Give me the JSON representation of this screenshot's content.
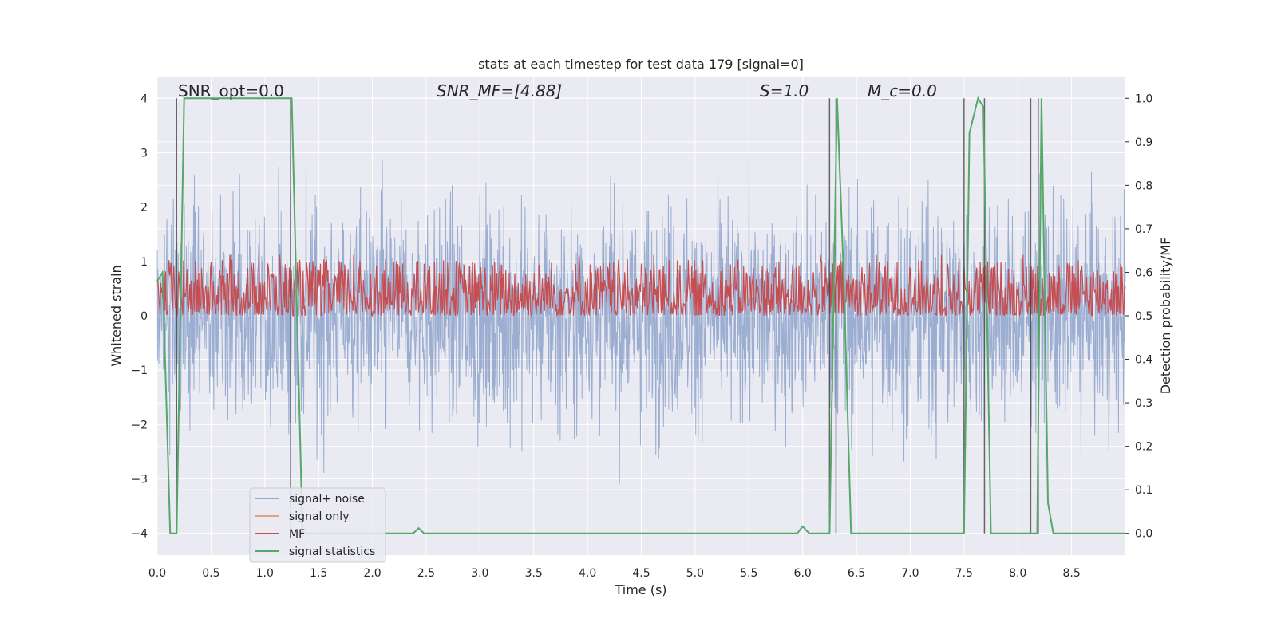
{
  "chart_data": {
    "type": "line",
    "title": "stats at each timestep for test data 179 [signal=0]",
    "xlabel": "Time (s)",
    "ylabel_left": "Whitened strain",
    "ylabel_right": "Detection probability/MF",
    "xlim": [
      0.0,
      9.0
    ],
    "ylim_left": [
      -4.4,
      4.4
    ],
    "ylim_right": [
      -0.05,
      1.05
    ],
    "x_ticks": [
      "0.0",
      "0.5",
      "1.0",
      "1.5",
      "2.0",
      "2.5",
      "3.0",
      "3.5",
      "4.0",
      "4.5",
      "5.0",
      "5.5",
      "6.0",
      "6.5",
      "7.0",
      "7.5",
      "8.0",
      "8.5"
    ],
    "y_ticks_left": [
      "−4",
      "−3",
      "−2",
      "−1",
      "0",
      "1",
      "2",
      "3",
      "4"
    ],
    "y_ticks_right": [
      "0.0",
      "0.1",
      "0.2",
      "0.3",
      "0.4",
      "0.5",
      "0.6",
      "0.7",
      "0.8",
      "0.9",
      "1.0"
    ],
    "grid": true,
    "legend_position": "lower-left",
    "annotations": [
      {
        "text": "SNR_opt=0.0",
        "x": 0.19
      },
      {
        "text": "SNR_MF=[4.88]",
        "x": 2.6
      },
      {
        "text": "S=1.0",
        "x": 5.6
      },
      {
        "text": "M_c=0.0",
        "x": 6.6
      }
    ],
    "series": [
      {
        "name": "signal+ noise",
        "color": "#4c72b0",
        "axis": "left",
        "kind": "noise",
        "amplitude_range": [
          -3.8,
          3.6
        ]
      },
      {
        "name": "signal only",
        "color": "#dd8452",
        "axis": "left",
        "values": []
      },
      {
        "name": "MF",
        "color": "#c44e52",
        "axis": "right",
        "kind": "noise",
        "range": [
          0.5,
          0.63
        ]
      },
      {
        "name": "signal statistics",
        "color": "#55a868",
        "axis": "right",
        "x": [
          0.0,
          0.05,
          0.12,
          0.18,
          0.25,
          1.25,
          1.3,
          1.35,
          2.38,
          2.43,
          2.48,
          5.95,
          6.0,
          6.06,
          6.25,
          6.32,
          6.38,
          6.45,
          7.2,
          7.5,
          7.55,
          7.63,
          7.68,
          7.75,
          8.05,
          8.18,
          8.22,
          8.28,
          8.33,
          9.0
        ],
        "y": [
          0.58,
          0.6,
          0.0,
          0.0,
          1.0,
          1.0,
          0.5,
          0.0,
          0.0,
          0.012,
          0.0,
          0.0,
          0.016,
          0.0,
          0.0,
          1.0,
          0.6,
          0.0,
          0.0,
          0.0,
          0.92,
          1.0,
          0.98,
          0.0,
          0.0,
          0.0,
          1.0,
          0.07,
          0.0,
          0.0
        ]
      }
    ],
    "vlines": [
      0.18,
      1.24,
      6.25,
      6.31,
      7.5,
      7.69,
      8.12,
      8.19
    ]
  }
}
